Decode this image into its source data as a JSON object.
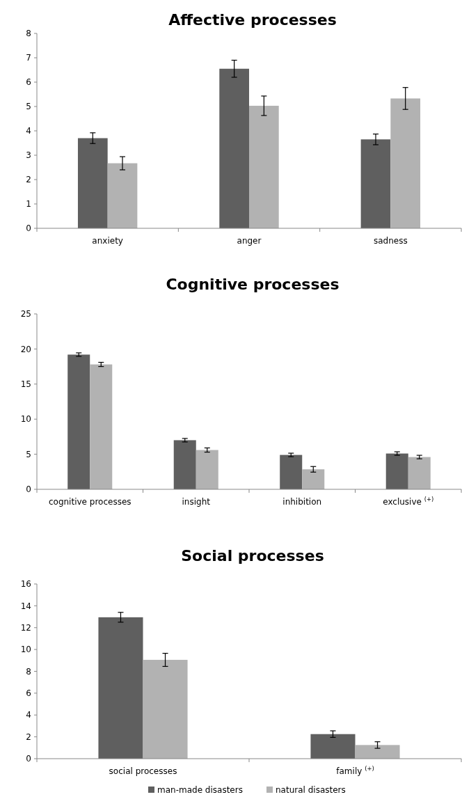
{
  "chart_data": [
    {
      "type": "bar",
      "title": "Affective processes",
      "categories": [
        "anxiety",
        "anger",
        "sadness"
      ],
      "series": [
        {
          "color": "#5f5f5f",
          "values": [
            3.7,
            6.55,
            3.65
          ],
          "errors": [
            0.22,
            0.35,
            0.22
          ]
        },
        {
          "color": "#b2b2b2",
          "values": [
            2.67,
            5.03,
            5.33
          ],
          "errors": [
            0.27,
            0.4,
            0.45
          ]
        }
      ],
      "ylim": [
        0,
        8
      ],
      "yticks": [
        0,
        1,
        2,
        3,
        4,
        5,
        6,
        7,
        8
      ],
      "grid": false,
      "legend": false
    },
    {
      "type": "bar",
      "title": "Cognitive processes",
      "categories": [
        "cognitive processes",
        "insight",
        "inhibition",
        "exclusive $^{(+)}$"
      ],
      "series": [
        {
          "color": "#5f5f5f",
          "values": [
            19.2,
            7.0,
            4.9,
            5.1
          ],
          "errors": [
            0.25,
            0.25,
            0.25,
            0.25
          ]
        },
        {
          "color": "#b2b2b2",
          "values": [
            17.8,
            5.6,
            2.85,
            4.6
          ],
          "errors": [
            0.3,
            0.3,
            0.4,
            0.25
          ]
        }
      ],
      "ylim": [
        0,
        25
      ],
      "yticks": [
        0,
        5,
        10,
        15,
        20,
        25
      ],
      "grid": false,
      "legend": false
    },
    {
      "type": "bar",
      "title": "Social processes",
      "categories": [
        "social processes",
        "family $^{(+)}$"
      ],
      "series": [
        {
          "name": "man-made disasters",
          "color": "#5f5f5f",
          "values": [
            12.95,
            2.25
          ],
          "errors": [
            0.45,
            0.3
          ]
        },
        {
          "name": "natural disasters",
          "color": "#b2b2b2",
          "values": [
            9.05,
            1.25
          ],
          "errors": [
            0.6,
            0.3
          ]
        }
      ],
      "ylim": [
        0,
        16
      ],
      "yticks": [
        0,
        2,
        4,
        6,
        8,
        10,
        12,
        14,
        16
      ],
      "grid": false,
      "legend": "bottom"
    }
  ]
}
